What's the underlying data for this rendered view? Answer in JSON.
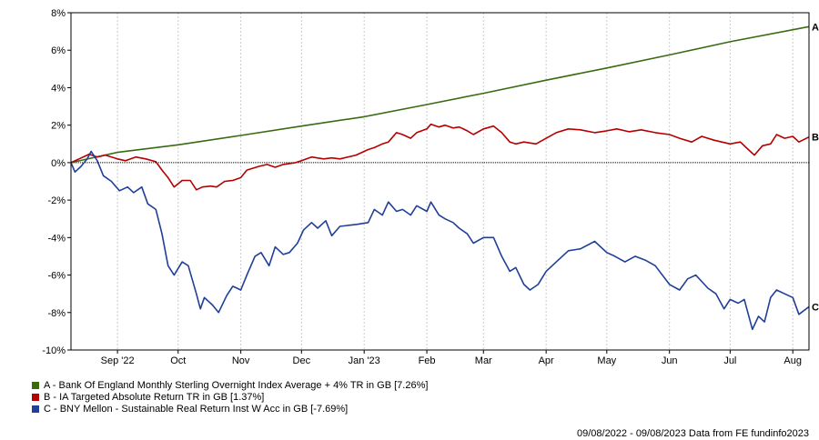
{
  "chart_data": {
    "type": "line",
    "ylim": [
      -10,
      8
    ],
    "y_ticks": [
      8,
      6,
      4,
      2,
      0,
      -2,
      -4,
      -6,
      -8,
      -10
    ],
    "y_tick_labels": [
      "8%",
      "6%",
      "4%",
      "2%",
      "0%",
      "-2%",
      "-4%",
      "-6%",
      "-8%",
      "-10%"
    ],
    "x_range": [
      "2022-08-09",
      "2023-08-09"
    ],
    "x_ticks": [
      {
        "date": "2022-09-01",
        "label": "Sep '22"
      },
      {
        "date": "2022-10-01",
        "label": "Oct"
      },
      {
        "date": "2022-11-01",
        "label": "Nov"
      },
      {
        "date": "2022-12-01",
        "label": "Dec"
      },
      {
        "date": "2023-01-01",
        "label": "Jan '23"
      },
      {
        "date": "2023-02-01",
        "label": "Feb"
      },
      {
        "date": "2023-03-01",
        "label": "Mar"
      },
      {
        "date": "2023-04-01",
        "label": "Apr"
      },
      {
        "date": "2023-05-01",
        "label": "May"
      },
      {
        "date": "2023-06-01",
        "label": "Jun"
      },
      {
        "date": "2023-07-01",
        "label": "Jul"
      },
      {
        "date": "2023-08-01",
        "label": "Aug"
      }
    ],
    "grid": "vertical",
    "zero_line": "dotted",
    "series": [
      {
        "name": "A - Bank Of England Monthly Sterling Overnight Index Average + 4% TR in GB [7.26%]",
        "end_label": "A",
        "color": "#3a6b12",
        "points": [
          [
            "2022-08-09",
            0.0
          ],
          [
            "2022-09-01",
            0.55
          ],
          [
            "2022-10-01",
            0.95
          ],
          [
            "2022-11-01",
            1.45
          ],
          [
            "2022-12-01",
            1.95
          ],
          [
            "2023-01-01",
            2.45
          ],
          [
            "2023-02-01",
            3.1
          ],
          [
            "2023-03-01",
            3.7
          ],
          [
            "2023-04-01",
            4.4
          ],
          [
            "2023-05-01",
            5.05
          ],
          [
            "2023-06-01",
            5.75
          ],
          [
            "2023-07-01",
            6.45
          ],
          [
            "2023-08-09",
            7.26
          ]
        ]
      },
      {
        "name": "B - IA Targeted Absolute Return TR in GB [1.37%]",
        "end_label": "B",
        "color": "#b40000",
        "points": [
          [
            "2022-08-09",
            0.0
          ],
          [
            "2022-08-13",
            0.2
          ],
          [
            "2022-08-18",
            0.45
          ],
          [
            "2022-08-22",
            0.3
          ],
          [
            "2022-08-26",
            0.4
          ],
          [
            "2022-09-01",
            0.2
          ],
          [
            "2022-09-05",
            0.1
          ],
          [
            "2022-09-10",
            0.3
          ],
          [
            "2022-09-15",
            0.2
          ],
          [
            "2022-09-20",
            0.05
          ],
          [
            "2022-09-23",
            -0.4
          ],
          [
            "2022-09-26",
            -0.8
          ],
          [
            "2022-09-29",
            -1.3
          ],
          [
            "2022-10-03",
            -0.95
          ],
          [
            "2022-10-07",
            -0.95
          ],
          [
            "2022-10-10",
            -1.45
          ],
          [
            "2022-10-13",
            -1.3
          ],
          [
            "2022-10-17",
            -1.25
          ],
          [
            "2022-10-20",
            -1.3
          ],
          [
            "2022-10-24",
            -1.0
          ],
          [
            "2022-10-28",
            -0.95
          ],
          [
            "2022-11-01",
            -0.8
          ],
          [
            "2022-11-04",
            -0.4
          ],
          [
            "2022-11-10",
            -0.2
          ],
          [
            "2022-11-14",
            -0.1
          ],
          [
            "2022-11-18",
            -0.25
          ],
          [
            "2022-11-22",
            -0.1
          ],
          [
            "2022-11-28",
            0.0
          ],
          [
            "2022-12-01",
            0.1
          ],
          [
            "2022-12-06",
            0.3
          ],
          [
            "2022-12-12",
            0.2
          ],
          [
            "2022-12-16",
            0.25
          ],
          [
            "2022-12-20",
            0.2
          ],
          [
            "2022-12-28",
            0.4
          ],
          [
            "2023-01-03",
            0.7
          ],
          [
            "2023-01-06",
            0.8
          ],
          [
            "2023-01-10",
            1.0
          ],
          [
            "2023-01-13",
            1.1
          ],
          [
            "2023-01-17",
            1.6
          ],
          [
            "2023-01-20",
            1.5
          ],
          [
            "2023-01-24",
            1.3
          ],
          [
            "2023-01-27",
            1.6
          ],
          [
            "2023-02-01",
            1.8
          ],
          [
            "2023-02-03",
            2.05
          ],
          [
            "2023-02-07",
            1.9
          ],
          [
            "2023-02-10",
            2.0
          ],
          [
            "2023-02-14",
            1.85
          ],
          [
            "2023-02-17",
            1.9
          ],
          [
            "2023-02-21",
            1.7
          ],
          [
            "2023-02-24",
            1.5
          ],
          [
            "2023-03-01",
            1.8
          ],
          [
            "2023-03-06",
            1.95
          ],
          [
            "2023-03-10",
            1.6
          ],
          [
            "2023-03-14",
            1.1
          ],
          [
            "2023-03-17",
            1.0
          ],
          [
            "2023-03-21",
            1.1
          ],
          [
            "2023-03-27",
            1.0
          ],
          [
            "2023-04-01",
            1.3
          ],
          [
            "2023-04-06",
            1.6
          ],
          [
            "2023-04-12",
            1.8
          ],
          [
            "2023-04-18",
            1.75
          ],
          [
            "2023-04-25",
            1.6
          ],
          [
            "2023-05-01",
            1.7
          ],
          [
            "2023-05-06",
            1.8
          ],
          [
            "2023-05-12",
            1.65
          ],
          [
            "2023-05-18",
            1.75
          ],
          [
            "2023-05-25",
            1.6
          ],
          [
            "2023-06-01",
            1.5
          ],
          [
            "2023-06-06",
            1.3
          ],
          [
            "2023-06-12",
            1.1
          ],
          [
            "2023-06-17",
            1.4
          ],
          [
            "2023-06-23",
            1.2
          ],
          [
            "2023-07-01",
            1.0
          ],
          [
            "2023-07-06",
            1.1
          ],
          [
            "2023-07-10",
            0.7
          ],
          [
            "2023-07-13",
            0.4
          ],
          [
            "2023-07-17",
            0.9
          ],
          [
            "2023-07-21",
            1.0
          ],
          [
            "2023-07-24",
            1.5
          ],
          [
            "2023-07-28",
            1.3
          ],
          [
            "2023-08-01",
            1.4
          ],
          [
            "2023-08-04",
            1.1
          ],
          [
            "2023-08-09",
            1.37
          ]
        ]
      },
      {
        "name": "C - BNY Mellon - Sustainable Real Return Inst W Acc in GB [-7.69%]",
        "end_label": "C",
        "color": "#1f3f99",
        "points": [
          [
            "2022-08-09",
            0.0
          ],
          [
            "2022-08-11",
            -0.5
          ],
          [
            "2022-08-14",
            -0.2
          ],
          [
            "2022-08-17",
            0.2
          ],
          [
            "2022-08-19",
            0.6
          ],
          [
            "2022-08-22",
            0.1
          ],
          [
            "2022-08-25",
            -0.7
          ],
          [
            "2022-08-29",
            -1.0
          ],
          [
            "2022-09-02",
            -1.5
          ],
          [
            "2022-09-06",
            -1.3
          ],
          [
            "2022-09-09",
            -1.6
          ],
          [
            "2022-09-13",
            -1.3
          ],
          [
            "2022-09-16",
            -2.2
          ],
          [
            "2022-09-20",
            -2.5
          ],
          [
            "2022-09-23",
            -3.8
          ],
          [
            "2022-09-26",
            -5.5
          ],
          [
            "2022-09-29",
            -6.0
          ],
          [
            "2022-10-03",
            -5.3
          ],
          [
            "2022-10-06",
            -5.5
          ],
          [
            "2022-10-10",
            -7.0
          ],
          [
            "2022-10-12",
            -7.8
          ],
          [
            "2022-10-14",
            -7.2
          ],
          [
            "2022-10-18",
            -7.6
          ],
          [
            "2022-10-21",
            -8.0
          ],
          [
            "2022-10-25",
            -7.1
          ],
          [
            "2022-10-28",
            -6.6
          ],
          [
            "2022-11-01",
            -6.8
          ],
          [
            "2022-11-04",
            -6.0
          ],
          [
            "2022-11-08",
            -5.0
          ],
          [
            "2022-11-11",
            -4.8
          ],
          [
            "2022-11-15",
            -5.5
          ],
          [
            "2022-11-18",
            -4.5
          ],
          [
            "2022-11-22",
            -4.9
          ],
          [
            "2022-11-25",
            -4.8
          ],
          [
            "2022-11-29",
            -4.3
          ],
          [
            "2022-12-02",
            -3.6
          ],
          [
            "2022-12-06",
            -3.2
          ],
          [
            "2022-12-09",
            -3.5
          ],
          [
            "2022-12-13",
            -3.1
          ],
          [
            "2022-12-16",
            -3.9
          ],
          [
            "2022-12-20",
            -3.4
          ],
          [
            "2022-12-28",
            -3.3
          ],
          [
            "2023-01-03",
            -3.2
          ],
          [
            "2023-01-06",
            -2.5
          ],
          [
            "2023-01-10",
            -2.8
          ],
          [
            "2023-01-13",
            -2.1
          ],
          [
            "2023-01-17",
            -2.6
          ],
          [
            "2023-01-20",
            -2.5
          ],
          [
            "2023-01-24",
            -2.8
          ],
          [
            "2023-01-27",
            -2.3
          ],
          [
            "2023-02-01",
            -2.6
          ],
          [
            "2023-02-03",
            -2.1
          ],
          [
            "2023-02-07",
            -2.8
          ],
          [
            "2023-02-10",
            -3.0
          ],
          [
            "2023-02-14",
            -3.2
          ],
          [
            "2023-02-17",
            -3.5
          ],
          [
            "2023-02-21",
            -3.8
          ],
          [
            "2023-02-24",
            -4.3
          ],
          [
            "2023-03-01",
            -4.0
          ],
          [
            "2023-03-06",
            -4.0
          ],
          [
            "2023-03-10",
            -5.0
          ],
          [
            "2023-03-14",
            -5.8
          ],
          [
            "2023-03-17",
            -5.6
          ],
          [
            "2023-03-21",
            -6.5
          ],
          [
            "2023-03-24",
            -6.8
          ],
          [
            "2023-03-28",
            -6.5
          ],
          [
            "2023-04-01",
            -5.8
          ],
          [
            "2023-04-06",
            -5.3
          ],
          [
            "2023-04-12",
            -4.7
          ],
          [
            "2023-04-18",
            -4.6
          ],
          [
            "2023-04-25",
            -4.2
          ],
          [
            "2023-05-01",
            -4.8
          ],
          [
            "2023-05-05",
            -5.0
          ],
          [
            "2023-05-10",
            -5.3
          ],
          [
            "2023-05-15",
            -5.0
          ],
          [
            "2023-05-20",
            -5.2
          ],
          [
            "2023-05-25",
            -5.5
          ],
          [
            "2023-06-01",
            -6.5
          ],
          [
            "2023-06-06",
            -6.8
          ],
          [
            "2023-06-10",
            -6.2
          ],
          [
            "2023-06-14",
            -6.0
          ],
          [
            "2023-06-20",
            -6.7
          ],
          [
            "2023-06-24",
            -7.0
          ],
          [
            "2023-06-28",
            -7.8
          ],
          [
            "2023-07-01",
            -7.3
          ],
          [
            "2023-07-05",
            -7.5
          ],
          [
            "2023-07-08",
            -7.3
          ],
          [
            "2023-07-12",
            -8.9
          ],
          [
            "2023-07-15",
            -8.2
          ],
          [
            "2023-07-18",
            -8.5
          ],
          [
            "2023-07-21",
            -7.2
          ],
          [
            "2023-07-24",
            -6.8
          ],
          [
            "2023-07-28",
            -7.0
          ],
          [
            "2023-08-01",
            -7.2
          ],
          [
            "2023-08-04",
            -8.1
          ],
          [
            "2023-08-09",
            -7.69
          ]
        ]
      }
    ]
  },
  "footer": {
    "text": "09/08/2022 - 09/08/2023 Data from FE fundinfo2023"
  }
}
